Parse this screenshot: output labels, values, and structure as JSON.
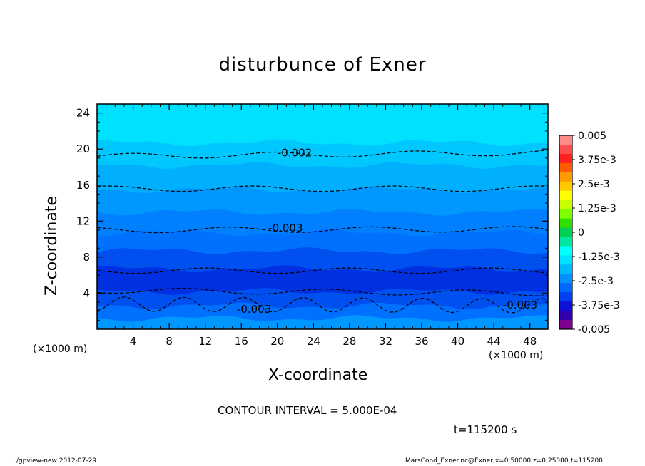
{
  "chart_data": {
    "type": "heatmap",
    "title": "disturbunce of Exner",
    "xlabel": "X-coordinate",
    "ylabel": "Z-coordinate",
    "x_unit": "(×1000 m)",
    "xlim": [
      0,
      50
    ],
    "ylim": [
      0,
      25
    ],
    "x_ticks": [
      4,
      8,
      12,
      16,
      20,
      24,
      28,
      32,
      36,
      40,
      44,
      48
    ],
    "y_ticks": [
      4,
      8,
      12,
      16,
      20,
      24
    ],
    "colorbar": {
      "labels": [
        "0.005",
        "3.75e-3",
        "2.5e-3",
        "1.25e-3",
        "0",
        "-1.25e-3",
        "-2.5e-3",
        "-3.75e-3",
        "-0.005"
      ],
      "levels": [
        0.005,
        0.0045,
        0.004,
        0.0035,
        0.003,
        0.0025,
        0.002,
        0.0015,
        0.001,
        0.0005,
        0,
        -0.0005,
        -0.001,
        -0.0015,
        -0.002,
        -0.0025,
        -0.003,
        -0.0035,
        -0.004,
        -0.0045,
        -0.005
      ],
      "colors": [
        "#ff8a8a",
        "#ff5050",
        "#ff2020",
        "#ff5a00",
        "#ff9a00",
        "#ffc800",
        "#ffff00",
        "#c8ff00",
        "#80ff00",
        "#30e000",
        "#00d050",
        "#00e8a0",
        "#00ffff",
        "#00e0ff",
        "#00b8ff",
        "#0090ff",
        "#0068ff",
        "#0040f0",
        "#1010d8",
        "#3000b0",
        "#800090"
      ]
    },
    "contours": [
      {
        "label": "-0.002",
        "z_left": 19.2,
        "z_right": 19.6
      },
      {
        "label": "",
        "z_left": 15.6,
        "z_right": 15.6
      },
      {
        "label": "-0.003",
        "z_left": 11.0,
        "z_right": 11.1
      },
      {
        "label": "",
        "z_left": 6.5,
        "z_right": 6.5
      },
      {
        "label": "",
        "z_left": 4.3,
        "z_right": 4.0
      },
      {
        "label": "-0.003",
        "z_left": 2.8,
        "z_right": 2.6
      },
      {
        "label": "-0.003",
        "z_left": 2.8,
        "z_right": 2.6
      }
    ],
    "bands": [
      {
        "z_top": 25,
        "color": "#00e0ff"
      },
      {
        "z_top": 20.7,
        "color": "#00c8ff"
      },
      {
        "z_top": 18.2,
        "color": "#00b0ff"
      },
      {
        "z_top": 15.5,
        "color": "#0098ff"
      },
      {
        "z_top": 13.0,
        "color": "#0080ff"
      },
      {
        "z_top": 10.7,
        "color": "#0070ff"
      },
      {
        "z_top": 8.7,
        "color": "#0050f0"
      },
      {
        "z_top": 6.7,
        "color": "#0030e0"
      },
      {
        "z_top": 4.2,
        "color": "#0050f0"
      },
      {
        "z_top": 2.6,
        "color": "#0070ff"
      },
      {
        "z_top": 1.2,
        "color": "#0098ff"
      }
    ]
  },
  "contour_interval": "CONTOUR INTERVAL = 5.000E-04",
  "time_label": "t=115200 s",
  "footer_left": "./gpview-new  2012-07-29",
  "footer_right": "MarsCond_Exner.nc@Exner,x=0:50000,z=0:25000,t=115200"
}
